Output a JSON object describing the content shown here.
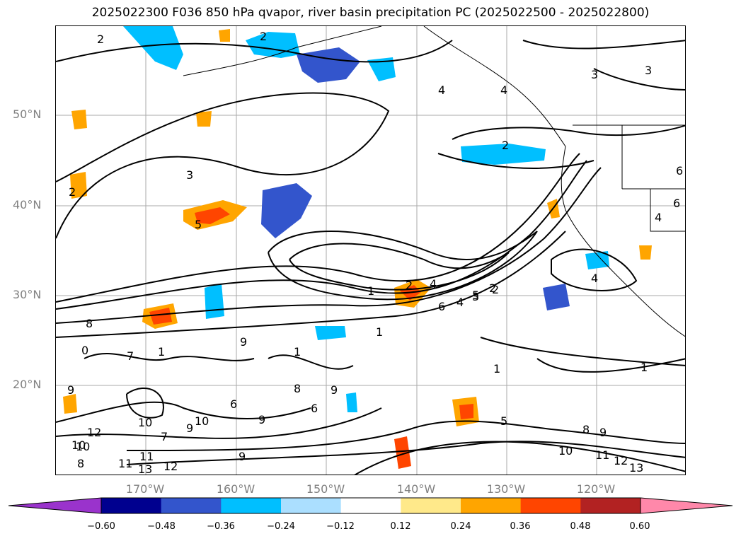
{
  "title": "2025022300 F036 850 hPa qvapor, river basin precipitation PC (2025022500 - 2025022800)",
  "lat_labels": [
    "50°N",
    "40°N",
    "30°N",
    "20°N"
  ],
  "lon_labels": [
    "170°W",
    "160°W",
    "150°W",
    "140°W",
    "130°W",
    "120°W"
  ],
  "colorbar": {
    "ticks": [
      "−0.60",
      "−0.48",
      "−0.36",
      "−0.24",
      "−0.12",
      "0.12",
      "0.24",
      "0.36",
      "0.48",
      "0.60"
    ],
    "colors": [
      "#9a33cc",
      "#00008f",
      "#3355cc",
      "#00bfff",
      "#abdfff",
      "#ffffff",
      "#ffe98a",
      "#ffa500",
      "#ff4500",
      "#b22222",
      "#ff88aa"
    ]
  },
  "contour_labels": [
    "2",
    "2",
    "3",
    "4",
    "4",
    "3",
    "2",
    "3",
    "2",
    "5",
    "6",
    "6",
    "4",
    "4",
    "1",
    "2",
    "4",
    "3",
    "2",
    "6",
    "4",
    "5",
    "2",
    "1",
    "8",
    "9",
    "0",
    "1",
    "7",
    "9",
    "1",
    "8",
    "9",
    "9",
    "6",
    "1",
    "6",
    "1",
    "10",
    "9",
    "10",
    "7",
    "9",
    "5",
    "8",
    "9",
    "10",
    "11",
    "12",
    "13",
    "11",
    "12",
    "13",
    "10",
    "11",
    "12",
    "10",
    "8"
  ]
}
